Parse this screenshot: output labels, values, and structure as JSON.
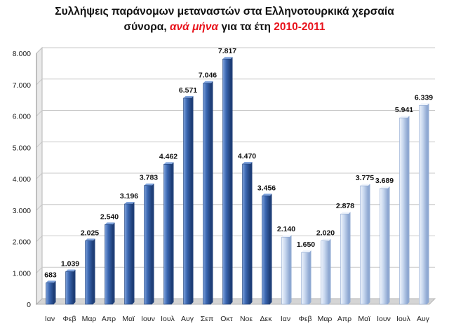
{
  "chart_data": {
    "type": "bar",
    "title": {
      "line1": "Συλλήψεις παράνομων μεταναστών στα Ελληνοτουρκικά χερσαία",
      "line2_a": "σύνορα, ",
      "line2_b": "ανά μήνα",
      "line2_c": " για τα έτη ",
      "line2_d": "2010-2011"
    },
    "categories": [
      "Ιαν",
      "Φεβ",
      "Μαρ",
      "Απρ",
      "Μαϊ",
      "Ιουν",
      "Ιουλ",
      "Αυγ",
      "Σεπ",
      "Οκτ",
      "Νοε",
      "Δεκ",
      "Ιαν",
      "Φεβ",
      "Μαρ",
      "Απρ",
      "Μαϊ",
      "Ιουν",
      "Ιουλ",
      "Αυγ"
    ],
    "values": [
      683,
      1039,
      2025,
      2540,
      3196,
      3783,
      4462,
      6571,
      7046,
      7817,
      4470,
      3456,
      2140,
      1650,
      2020,
      2878,
      3775,
      3689,
      5941,
      6339
    ],
    "value_labels": [
      "683",
      "1.039",
      "2.025",
      "2.540",
      "3.196",
      "3.783",
      "4.462",
      "6.571",
      "7.046",
      "7.817",
      "4.470",
      "3.456",
      "2.140",
      "1.650",
      "2.020",
      "2.878",
      "3.775",
      "3.689",
      "5.941",
      "6.339"
    ],
    "series_groups": [
      {
        "year": 2010,
        "start": 0,
        "count": 12,
        "color": "#3a66b0",
        "light": "#7fa3dc",
        "dark": "#1f3f78"
      },
      {
        "year": 2011,
        "start": 12,
        "count": 8,
        "color": "#c9d8ef",
        "light": "#eef3fb",
        "dark": "#8fa9d2"
      }
    ],
    "ylim": [
      0,
      8000
    ],
    "yticks": [
      0,
      1000,
      2000,
      3000,
      4000,
      5000,
      6000,
      7000,
      8000
    ],
    "ytick_labels": [
      "0",
      "1.000",
      "2.000",
      "3.000",
      "4.000",
      "5.000",
      "6.000",
      "7.000",
      "8.000"
    ],
    "grid": true,
    "xlabel": "",
    "ylabel": ""
  }
}
